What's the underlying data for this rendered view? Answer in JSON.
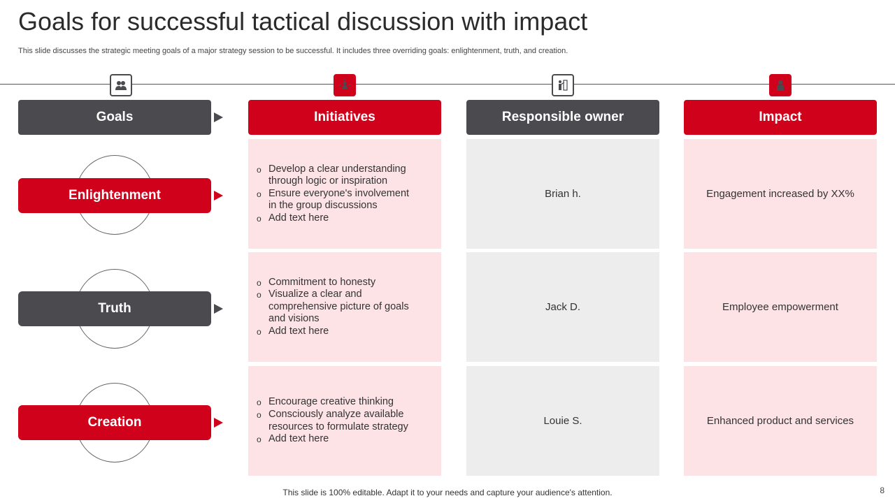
{
  "title": "Goals for successful tactical discussion with impact",
  "subtitle": "This slide discusses the strategic meeting goals of a major strategy session to be successful. It includes three overriding goals: enlightenment, truth, and creation.",
  "headers": {
    "goals": "Goals",
    "initiatives": "Initiatives",
    "owner": "Responsible owner",
    "impact": "Impact"
  },
  "icons": [
    "team-icon",
    "network-person-icon",
    "presenter-icon",
    "idea-hand-icon"
  ],
  "rows": [
    {
      "goal": "Enlightenment",
      "initiatives": [
        "Develop a clear understanding through logic or inspiration",
        "Ensure everyone's involvement in the group discussions",
        "Add text here"
      ],
      "owner": "Brian h.",
      "impact": "Engagement increased by XX%"
    },
    {
      "goal": "Truth",
      "initiatives": [
        "Commitment to honesty",
        "Visualize a clear and comprehensive picture of goals and visions",
        "Add text here"
      ],
      "owner": "Jack D.",
      "impact": "Employee empowerment"
    },
    {
      "goal": "Creation",
      "initiatives": [
        "Encourage creative thinking",
        "Consciously analyze available resources to formulate strategy",
        "Add text here"
      ],
      "owner": "Louie S.",
      "impact": "Enhanced product and services"
    }
  ],
  "footer": "This slide is 100% editable. Adapt it to your needs and capture your audience's attention.",
  "page_number": "8",
  "colors": {
    "red": "#d0021b",
    "dark": "#4a4a4f",
    "pink": "#fde3e6",
    "grey": "#ededee"
  }
}
